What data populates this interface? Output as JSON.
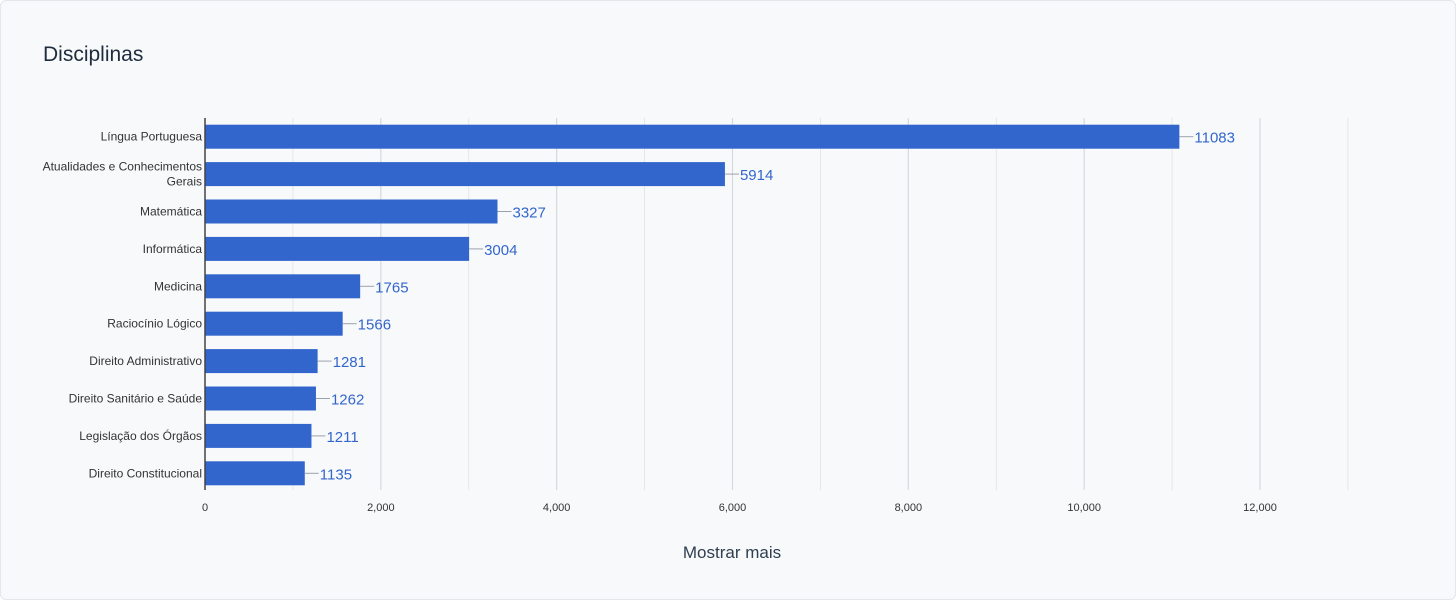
{
  "card": {
    "title": "Disciplinas",
    "show_more_label": "Mostrar mais"
  },
  "colors": {
    "bar": "#3366cc",
    "value_label": "#3366cc",
    "grid": "#d6d9dd",
    "axis": "#444444",
    "tick_label": "#333333"
  },
  "chart_data": {
    "type": "bar",
    "orientation": "horizontal",
    "categories": [
      "Língua Portuguesa",
      "Atualidades e Conhecimentos Gerais",
      "Matemática",
      "Informática",
      "Medicina",
      "Raciocínio Lógico",
      "Direito Administrativo",
      "Direito Sanitário e Saúde",
      "Legislação dos Órgãos",
      "Direito Constitucional"
    ],
    "category_lines": [
      [
        "Língua Portuguesa"
      ],
      [
        "Atualidades e Conhecimentos",
        "Gerais"
      ],
      [
        "Matemática"
      ],
      [
        "Informática"
      ],
      [
        "Medicina"
      ],
      [
        "Raciocínio Lógico"
      ],
      [
        "Direito Administrativo"
      ],
      [
        "Direito Sanitário e Saúde"
      ],
      [
        "Legislação dos Órgãos"
      ],
      [
        "Direito Constitucional"
      ]
    ],
    "values": [
      11083,
      5914,
      3327,
      3004,
      1765,
      1566,
      1281,
      1262,
      1211,
      1135
    ],
    "xlim": [
      0,
      13000
    ],
    "xticks": [
      0,
      2000,
      4000,
      6000,
      8000,
      10000,
      12000
    ],
    "xtick_labels": [
      "0",
      "2,000",
      "4,000",
      "6,000",
      "8,000",
      "10,000",
      "12,000"
    ],
    "minor_grid_step": 1000,
    "grid": true,
    "legend": "none"
  }
}
